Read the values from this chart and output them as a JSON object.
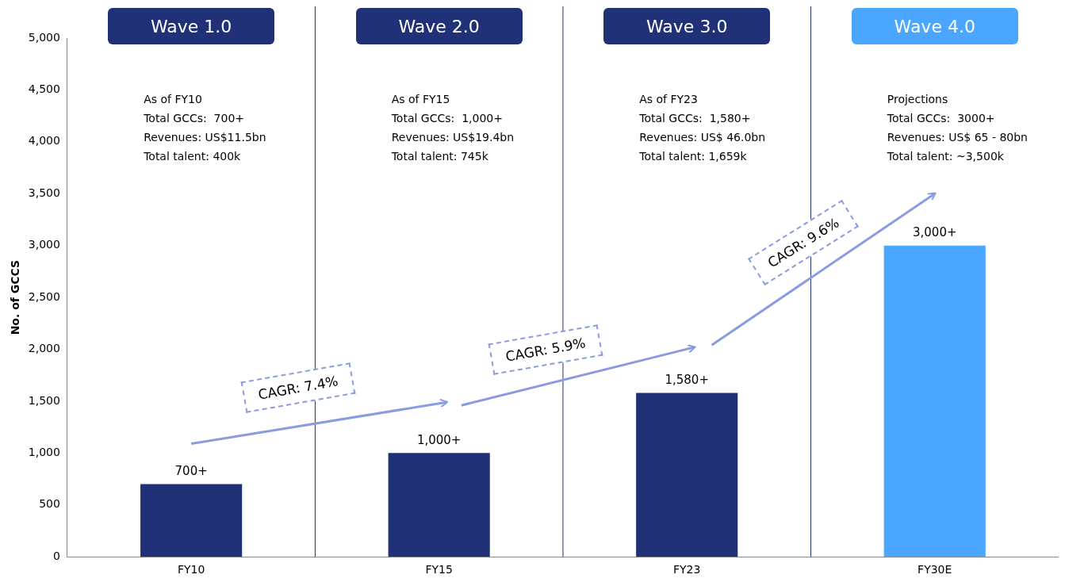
{
  "chart_data": {
    "type": "bar",
    "ylabel": "No. of GCCS",
    "categories": [
      "FY10",
      "FY15",
      "FY23",
      "FY30E"
    ],
    "values": [
      700,
      1000,
      1580,
      3000
    ],
    "colors": [
      "#203178",
      "#203178",
      "#203178",
      "#4aa6ff"
    ],
    "value_labels": [
      "700+",
      "1,000+",
      "1,580+",
      "3,000+"
    ],
    "ylim": [
      0,
      5000
    ],
    "yticks": [
      0,
      500,
      {
        "value": 1000,
        "label": "1,000"
      },
      {
        "value": 1500,
        "label": "1,500"
      },
      {
        "value": 2000,
        "label": "2,000"
      },
      {
        "value": 2500,
        "label": "2,500"
      },
      {
        "value": 3000,
        "label": "3,000"
      },
      {
        "value": 3500,
        "label": "3,500"
      },
      {
        "value": 4000,
        "label": "4,000"
      },
      {
        "value": 4500,
        "label": "4,500"
      },
      {
        "value": 5000,
        "label": "5,000"
      }
    ],
    "grid": false,
    "legend": false,
    "annotations": [
      "Wave 1.0",
      "Wave 2.0",
      "Wave 3.0",
      "Wave 4.0",
      "As of FY10\nTotal GCCs:  700+\nRevenues: US$11.5bn\nTotal talent: 400k",
      "As of FY15\nTotal GCCs:  1,000+\nRevenues: US$19.4bn\nTotal talent: 745k",
      "As of FY23\nTotal GCCs:  1,580+\nRevenues: US$ 46.0bn\nTotal talent: 1,659k",
      "Projections\nTotal GCCs:  3000+\nRevenues: US$ 65 - 80bn\nTotal talent: ~3,500k",
      "CAGR: 7.4%",
      "CAGR: 5.9%",
      "CAGR: 9.6%"
    ]
  }
}
